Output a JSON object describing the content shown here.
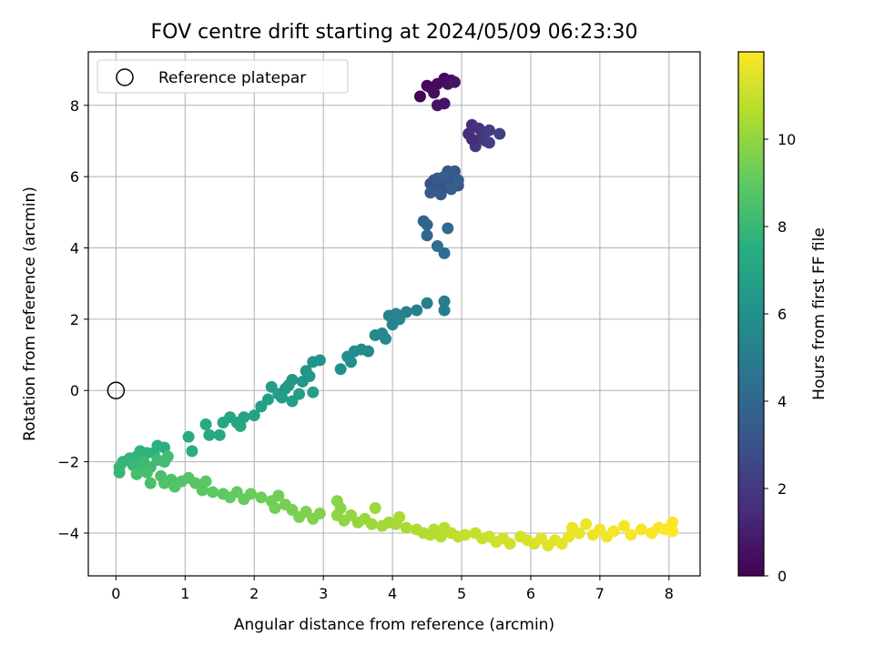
{
  "chart_data": {
    "type": "scatter",
    "title": "FOV centre drift starting at 2024/05/09 06:23:30",
    "xlabel": "Angular distance from reference (arcmin)",
    "ylabel": "Rotation from reference (arcmin)",
    "xlim": [
      -0.4,
      8.45
    ],
    "ylim": [
      -5.2,
      9.5
    ],
    "xticks": [
      "0",
      "1",
      "2",
      "3",
      "4",
      "5",
      "6",
      "7",
      "8"
    ],
    "yticks": [
      "−4",
      "−2",
      "0",
      "2",
      "4",
      "6",
      "8"
    ],
    "grid": true,
    "legend": {
      "placement": "top-left",
      "entries": [
        {
          "label": "Reference platepar",
          "marker": "open-circle"
        }
      ]
    },
    "colorbar": {
      "label": "Hours from first FF file",
      "colormap": "viridis",
      "range": [
        0,
        12
      ],
      "ticks": [
        "0",
        "2",
        "4",
        "6",
        "8",
        "10"
      ]
    },
    "reference_point": {
      "x": 0,
      "y": 0
    },
    "point_color_key": "color value = hours from first FF file",
    "points": [
      {
        "x": 4.4,
        "y": 8.25,
        "c": 0.1
      },
      {
        "x": 4.5,
        "y": 8.55,
        "c": 0.2
      },
      {
        "x": 4.55,
        "y": 8.5,
        "c": 0.25
      },
      {
        "x": 4.65,
        "y": 8.6,
        "c": 0.3
      },
      {
        "x": 4.75,
        "y": 8.75,
        "c": 0.35
      },
      {
        "x": 4.85,
        "y": 8.7,
        "c": 0.4
      },
      {
        "x": 4.8,
        "y": 8.6,
        "c": 0.45
      },
      {
        "x": 4.6,
        "y": 8.35,
        "c": 0.5
      },
      {
        "x": 4.65,
        "y": 8.0,
        "c": 0.6
      },
      {
        "x": 4.75,
        "y": 8.05,
        "c": 0.65
      },
      {
        "x": 4.9,
        "y": 8.65,
        "c": 0.7
      },
      {
        "x": 5.1,
        "y": 7.2,
        "c": 1.5
      },
      {
        "x": 5.15,
        "y": 7.45,
        "c": 1.6
      },
      {
        "x": 5.2,
        "y": 7.0,
        "c": 1.7
      },
      {
        "x": 5.25,
        "y": 7.35,
        "c": 1.8
      },
      {
        "x": 5.3,
        "y": 7.2,
        "c": 1.9
      },
      {
        "x": 5.2,
        "y": 6.85,
        "c": 2.0
      },
      {
        "x": 5.35,
        "y": 7.0,
        "c": 2.1
      },
      {
        "x": 5.4,
        "y": 7.3,
        "c": 2.2
      },
      {
        "x": 5.4,
        "y": 6.95,
        "c": 2.25
      },
      {
        "x": 5.55,
        "y": 7.2,
        "c": 2.3
      },
      {
        "x": 5.15,
        "y": 7.05,
        "c": 1.55
      },
      {
        "x": 4.55,
        "y": 5.8,
        "c": 2.8
      },
      {
        "x": 4.6,
        "y": 5.9,
        "c": 2.85
      },
      {
        "x": 4.65,
        "y": 5.7,
        "c": 2.9
      },
      {
        "x": 4.7,
        "y": 5.6,
        "c": 2.95
      },
      {
        "x": 4.75,
        "y": 5.9,
        "c": 3.0
      },
      {
        "x": 4.8,
        "y": 5.8,
        "c": 3.05
      },
      {
        "x": 4.85,
        "y": 5.65,
        "c": 3.1
      },
      {
        "x": 4.9,
        "y": 5.9,
        "c": 3.15
      },
      {
        "x": 4.95,
        "y": 5.75,
        "c": 3.2
      },
      {
        "x": 4.8,
        "y": 6.15,
        "c": 3.25
      },
      {
        "x": 4.9,
        "y": 6.15,
        "c": 3.3
      },
      {
        "x": 4.7,
        "y": 5.5,
        "c": 3.35
      },
      {
        "x": 4.55,
        "y": 5.55,
        "c": 3.4
      },
      {
        "x": 4.65,
        "y": 5.95,
        "c": 3.45
      },
      {
        "x": 4.75,
        "y": 6.0,
        "c": 3.5
      },
      {
        "x": 4.85,
        "y": 5.7,
        "c": 3.55
      },
      {
        "x": 4.95,
        "y": 5.9,
        "c": 3.6
      },
      {
        "x": 4.45,
        "y": 4.75,
        "c": 3.8
      },
      {
        "x": 4.5,
        "y": 4.65,
        "c": 3.9
      },
      {
        "x": 4.5,
        "y": 4.35,
        "c": 4.0
      },
      {
        "x": 4.8,
        "y": 4.55,
        "c": 4.1
      },
      {
        "x": 4.65,
        "y": 4.05,
        "c": 4.2
      },
      {
        "x": 4.75,
        "y": 3.85,
        "c": 4.3
      },
      {
        "x": 4.75,
        "y": 2.5,
        "c": 5.0
      },
      {
        "x": 4.75,
        "y": 2.25,
        "c": 5.05
      },
      {
        "x": 4.5,
        "y": 2.45,
        "c": 5.1
      },
      {
        "x": 4.35,
        "y": 2.25,
        "c": 5.15
      },
      {
        "x": 4.2,
        "y": 2.2,
        "c": 5.2
      },
      {
        "x": 4.05,
        "y": 2.15,
        "c": 5.25
      },
      {
        "x": 4.0,
        "y": 1.85,
        "c": 5.3
      },
      {
        "x": 4.1,
        "y": 2.0,
        "c": 5.35
      },
      {
        "x": 3.95,
        "y": 2.1,
        "c": 5.4
      },
      {
        "x": 3.85,
        "y": 1.6,
        "c": 5.5
      },
      {
        "x": 3.75,
        "y": 1.55,
        "c": 5.55
      },
      {
        "x": 3.9,
        "y": 1.45,
        "c": 5.6
      },
      {
        "x": 3.65,
        "y": 1.1,
        "c": 5.7
      },
      {
        "x": 3.55,
        "y": 1.15,
        "c": 5.75
      },
      {
        "x": 3.45,
        "y": 1.1,
        "c": 5.8
      },
      {
        "x": 3.35,
        "y": 0.95,
        "c": 5.85
      },
      {
        "x": 3.4,
        "y": 0.8,
        "c": 5.9
      },
      {
        "x": 3.25,
        "y": 0.6,
        "c": 5.95
      },
      {
        "x": 2.95,
        "y": 0.85,
        "c": 6.1
      },
      {
        "x": 2.85,
        "y": 0.8,
        "c": 6.15
      },
      {
        "x": 2.75,
        "y": 0.55,
        "c": 6.2
      },
      {
        "x": 2.7,
        "y": 0.25,
        "c": 6.3
      },
      {
        "x": 2.8,
        "y": 0.4,
        "c": 6.25
      },
      {
        "x": 2.55,
        "y": 0.3,
        "c": 6.35
      },
      {
        "x": 2.5,
        "y": 0.15,
        "c": 6.4
      },
      {
        "x": 2.45,
        "y": 0.05,
        "c": 6.45
      },
      {
        "x": 2.35,
        "y": -0.1,
        "c": 6.5
      },
      {
        "x": 2.25,
        "y": 0.1,
        "c": 6.55
      },
      {
        "x": 2.4,
        "y": -0.2,
        "c": 6.6
      },
      {
        "x": 2.55,
        "y": -0.3,
        "c": 6.65
      },
      {
        "x": 2.65,
        "y": -0.1,
        "c": 6.7
      },
      {
        "x": 2.85,
        "y": -0.05,
        "c": 6.75
      },
      {
        "x": 2.2,
        "y": -0.25,
        "c": 6.8
      },
      {
        "x": 2.1,
        "y": -0.45,
        "c": 6.85
      },
      {
        "x": 2.0,
        "y": -0.7,
        "c": 6.9
      },
      {
        "x": 1.85,
        "y": -0.75,
        "c": 6.95
      },
      {
        "x": 1.75,
        "y": -0.9,
        "c": 7.0
      },
      {
        "x": 1.65,
        "y": -0.75,
        "c": 7.05
      },
      {
        "x": 1.8,
        "y": -1.0,
        "c": 7.1
      },
      {
        "x": 1.55,
        "y": -0.9,
        "c": 7.15
      },
      {
        "x": 1.5,
        "y": -1.25,
        "c": 7.2
      },
      {
        "x": 1.35,
        "y": -1.25,
        "c": 7.25
      },
      {
        "x": 1.3,
        "y": -0.95,
        "c": 7.3
      },
      {
        "x": 1.05,
        "y": -1.3,
        "c": 7.4
      },
      {
        "x": 1.1,
        "y": -1.7,
        "c": 7.45
      },
      {
        "x": 0.7,
        "y": -1.6,
        "c": 7.5
      },
      {
        "x": 0.6,
        "y": -1.55,
        "c": 7.55
      },
      {
        "x": 0.55,
        "y": -1.75,
        "c": 7.6
      },
      {
        "x": 0.45,
        "y": -1.75,
        "c": 7.65
      },
      {
        "x": 0.35,
        "y": -1.7,
        "c": 7.7
      },
      {
        "x": 0.3,
        "y": -1.85,
        "c": 7.75
      },
      {
        "x": 0.2,
        "y": -1.9,
        "c": 7.8
      },
      {
        "x": 0.1,
        "y": -2.0,
        "c": 7.85
      },
      {
        "x": 0.05,
        "y": -2.3,
        "c": 7.9
      },
      {
        "x": 0.05,
        "y": -2.15,
        "c": 7.95
      },
      {
        "x": 0.25,
        "y": -2.1,
        "c": 8.0
      },
      {
        "x": 0.35,
        "y": -2.2,
        "c": 8.05
      },
      {
        "x": 0.4,
        "y": -2.0,
        "c": 8.1
      },
      {
        "x": 0.5,
        "y": -2.15,
        "c": 8.15
      },
      {
        "x": 0.6,
        "y": -1.95,
        "c": 8.2
      },
      {
        "x": 0.7,
        "y": -2.0,
        "c": 8.25
      },
      {
        "x": 0.75,
        "y": -1.85,
        "c": 8.3
      },
      {
        "x": 0.3,
        "y": -2.35,
        "c": 8.35
      },
      {
        "x": 0.45,
        "y": -2.3,
        "c": 8.4
      },
      {
        "x": 0.5,
        "y": -2.6,
        "c": 8.45
      },
      {
        "x": 0.65,
        "y": -2.4,
        "c": 8.5
      },
      {
        "x": 0.7,
        "y": -2.6,
        "c": 8.55
      },
      {
        "x": 0.8,
        "y": -2.5,
        "c": 8.6
      },
      {
        "x": 0.85,
        "y": -2.7,
        "c": 8.65
      },
      {
        "x": 0.95,
        "y": -2.55,
        "c": 8.7
      },
      {
        "x": 1.05,
        "y": -2.45,
        "c": 8.75
      },
      {
        "x": 1.15,
        "y": -2.6,
        "c": 8.8
      },
      {
        "x": 1.25,
        "y": -2.8,
        "c": 8.85
      },
      {
        "x": 1.3,
        "y": -2.55,
        "c": 8.9
      },
      {
        "x": 1.4,
        "y": -2.85,
        "c": 8.95
      },
      {
        "x": 1.55,
        "y": -2.9,
        "c": 9.0
      },
      {
        "x": 1.65,
        "y": -3.0,
        "c": 9.05
      },
      {
        "x": 1.75,
        "y": -2.85,
        "c": 9.1
      },
      {
        "x": 1.85,
        "y": -3.05,
        "c": 9.15
      },
      {
        "x": 1.95,
        "y": -2.9,
        "c": 9.2
      },
      {
        "x": 2.1,
        "y": -3.0,
        "c": 9.25
      },
      {
        "x": 2.25,
        "y": -3.1,
        "c": 9.3
      },
      {
        "x": 2.35,
        "y": -2.95,
        "c": 9.35
      },
      {
        "x": 2.3,
        "y": -3.3,
        "c": 9.4
      },
      {
        "x": 2.45,
        "y": -3.2,
        "c": 9.45
      },
      {
        "x": 2.55,
        "y": -3.35,
        "c": 9.5
      },
      {
        "x": 2.65,
        "y": -3.55,
        "c": 9.55
      },
      {
        "x": 2.75,
        "y": -3.4,
        "c": 9.6
      },
      {
        "x": 2.85,
        "y": -3.6,
        "c": 9.65
      },
      {
        "x": 2.95,
        "y": -3.45,
        "c": 9.7
      },
      {
        "x": 3.2,
        "y": -3.1,
        "c": 9.8
      },
      {
        "x": 3.25,
        "y": -3.3,
        "c": 9.85
      },
      {
        "x": 3.2,
        "y": -3.5,
        "c": 9.9
      },
      {
        "x": 3.3,
        "y": -3.65,
        "c": 9.95
      },
      {
        "x": 3.4,
        "y": -3.5,
        "c": 10.0
      },
      {
        "x": 3.5,
        "y": -3.7,
        "c": 10.05
      },
      {
        "x": 3.6,
        "y": -3.6,
        "c": 10.1
      },
      {
        "x": 3.7,
        "y": -3.75,
        "c": 10.15
      },
      {
        "x": 3.75,
        "y": -3.3,
        "c": 10.2
      },
      {
        "x": 3.85,
        "y": -3.8,
        "c": 10.25
      },
      {
        "x": 3.95,
        "y": -3.7,
        "c": 10.3
      },
      {
        "x": 4.05,
        "y": -3.75,
        "c": 10.35
      },
      {
        "x": 4.1,
        "y": -3.55,
        "c": 10.4
      },
      {
        "x": 4.2,
        "y": -3.85,
        "c": 10.45
      },
      {
        "x": 4.35,
        "y": -3.9,
        "c": 10.5
      },
      {
        "x": 4.45,
        "y": -4.0,
        "c": 10.55
      },
      {
        "x": 4.55,
        "y": -4.05,
        "c": 10.6
      },
      {
        "x": 4.6,
        "y": -3.9,
        "c": 10.65
      },
      {
        "x": 4.7,
        "y": -4.1,
        "c": 10.7
      },
      {
        "x": 4.75,
        "y": -3.85,
        "c": 10.75
      },
      {
        "x": 4.85,
        "y": -4.0,
        "c": 10.8
      },
      {
        "x": 4.95,
        "y": -4.1,
        "c": 10.85
      },
      {
        "x": 5.05,
        "y": -4.05,
        "c": 10.9
      },
      {
        "x": 5.2,
        "y": -4.0,
        "c": 10.95
      },
      {
        "x": 5.3,
        "y": -4.15,
        "c": 11.0
      },
      {
        "x": 5.4,
        "y": -4.1,
        "c": 11.05
      },
      {
        "x": 5.5,
        "y": -4.25,
        "c": 11.1
      },
      {
        "x": 5.6,
        "y": -4.15,
        "c": 11.15
      },
      {
        "x": 5.7,
        "y": -4.3,
        "c": 11.2
      },
      {
        "x": 5.85,
        "y": -4.1,
        "c": 11.25
      },
      {
        "x": 5.95,
        "y": -4.2,
        "c": 11.3
      },
      {
        "x": 6.05,
        "y": -4.3,
        "c": 11.35
      },
      {
        "x": 6.15,
        "y": -4.15,
        "c": 11.4
      },
      {
        "x": 6.25,
        "y": -4.35,
        "c": 11.45
      },
      {
        "x": 6.35,
        "y": -4.2,
        "c": 11.5
      },
      {
        "x": 6.45,
        "y": -4.3,
        "c": 11.55
      },
      {
        "x": 6.55,
        "y": -4.1,
        "c": 11.6
      },
      {
        "x": 6.6,
        "y": -3.85,
        "c": 11.62
      },
      {
        "x": 6.7,
        "y": -4.0,
        "c": 11.65
      },
      {
        "x": 6.8,
        "y": -3.75,
        "c": 11.7
      },
      {
        "x": 6.9,
        "y": -4.05,
        "c": 11.72
      },
      {
        "x": 7.0,
        "y": -3.9,
        "c": 11.75
      },
      {
        "x": 7.1,
        "y": -4.1,
        "c": 11.78
      },
      {
        "x": 7.2,
        "y": -3.95,
        "c": 11.8
      },
      {
        "x": 7.35,
        "y": -3.8,
        "c": 11.83
      },
      {
        "x": 7.45,
        "y": -4.05,
        "c": 11.86
      },
      {
        "x": 7.6,
        "y": -3.9,
        "c": 11.88
      },
      {
        "x": 7.75,
        "y": -4.0,
        "c": 11.9
      },
      {
        "x": 7.85,
        "y": -3.85,
        "c": 11.92
      },
      {
        "x": 7.95,
        "y": -3.9,
        "c": 11.95
      },
      {
        "x": 8.05,
        "y": -3.7,
        "c": 11.97
      },
      {
        "x": 8.05,
        "y": -3.95,
        "c": 11.99
      }
    ]
  }
}
